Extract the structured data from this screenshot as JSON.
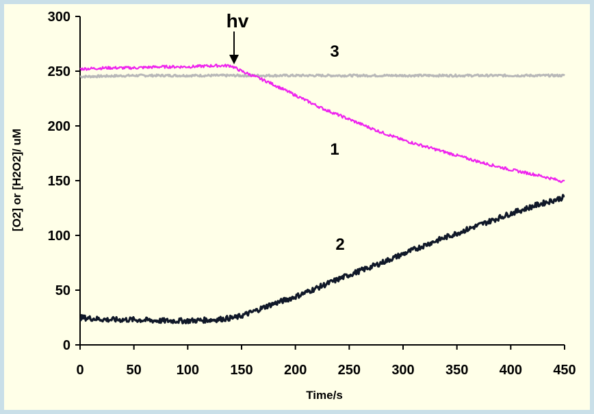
{
  "chart_data": {
    "type": "line",
    "xlabel": "Time/s",
    "ylabel": "[O2] or [H2O2]/ uM",
    "xlim": [
      0,
      450
    ],
    "ylim": [
      0,
      300
    ],
    "x_ticks": [
      0,
      50,
      100,
      150,
      200,
      250,
      300,
      350,
      400,
      450
    ],
    "y_ticks": [
      0,
      50,
      100,
      150,
      200,
      250,
      300
    ],
    "grid": false,
    "legend": "none",
    "series": [
      {
        "name": "1",
        "color": "#ee22ee",
        "x": [
          0,
          25,
          50,
          75,
          100,
          125,
          140,
          150,
          175,
          200,
          225,
          250,
          275,
          300,
          325,
          350,
          375,
          400,
          425,
          450
        ],
        "y": [
          252,
          253,
          253,
          254,
          254,
          255,
          255,
          250,
          240,
          228,
          216,
          206,
          196,
          187,
          180,
          173,
          166,
          160,
          155,
          149
        ]
      },
      {
        "name": "2",
        "color": "#101828",
        "x": [
          0,
          25,
          50,
          75,
          100,
          125,
          145,
          160,
          175,
          200,
          225,
          250,
          275,
          300,
          325,
          350,
          375,
          400,
          425,
          450
        ],
        "y": [
          25,
          23,
          23,
          22,
          22,
          23,
          25,
          30,
          36,
          44,
          54,
          64,
          73,
          83,
          93,
          102,
          111,
          120,
          128,
          135
        ]
      },
      {
        "name": "3",
        "color": "#b8b8b8",
        "x": [
          0,
          50,
          100,
          150,
          200,
          250,
          300,
          350,
          400,
          450
        ],
        "y": [
          245,
          246,
          246,
          246,
          246,
          246,
          246,
          246,
          246,
          246
        ]
      }
    ],
    "annotations": [
      {
        "text": "hv",
        "x": 143,
        "y": 255,
        "arrow": true
      }
    ]
  }
}
